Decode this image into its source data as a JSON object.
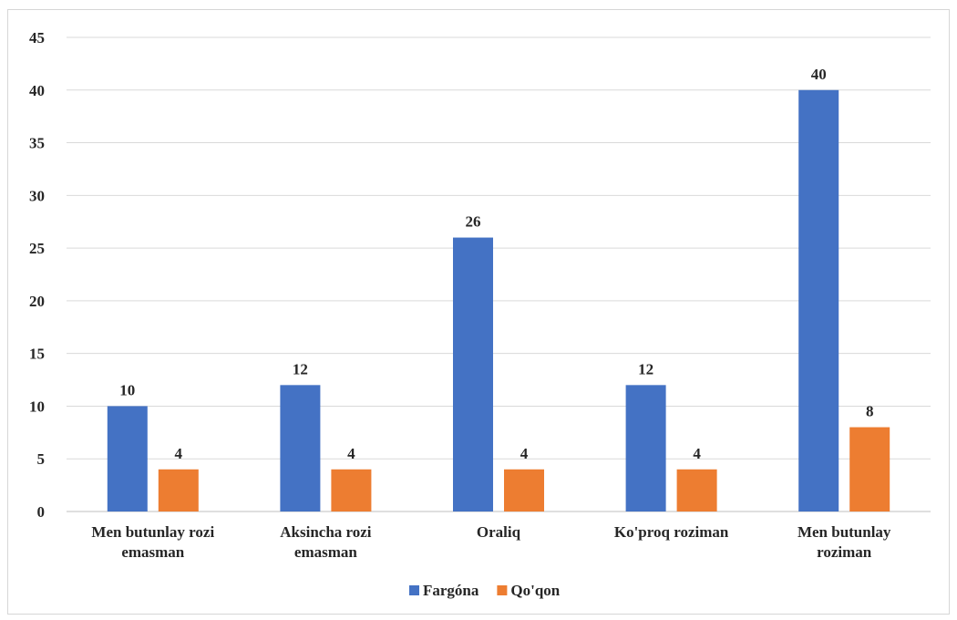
{
  "chart_data": {
    "type": "bar",
    "categories": [
      [
        "Men butunlay rozi",
        "emasman"
      ],
      [
        "Aksincha rozi",
        "emasman"
      ],
      [
        "Oraliq"
      ],
      [
        "Ko'proq roziman"
      ],
      [
        "Men butunlay",
        "roziman"
      ]
    ],
    "series": [
      {
        "name": "Fargóna",
        "values": [
          10,
          12,
          26,
          12,
          40
        ],
        "color": "#4472c4"
      },
      {
        "name": "Qo'qon",
        "values": [
          4,
          4,
          4,
          4,
          8
        ],
        "color": "#ed7d31"
      }
    ],
    "ylim": [
      0,
      45
    ],
    "ytick_step": 5,
    "grid": true,
    "legend": "bottom-center",
    "data_labels": true
  }
}
